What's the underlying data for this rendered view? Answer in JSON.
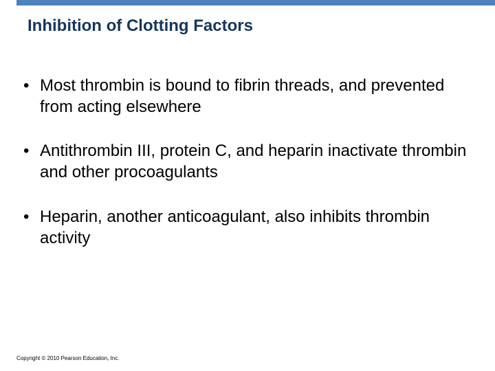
{
  "accent_color": "#4f81bd",
  "title_color": "#16365d",
  "text_color": "#000000",
  "background_color": "#ffffff",
  "title": {
    "text": "Inhibition of Clotting Factors",
    "fontsize": 24
  },
  "bullets": {
    "fontsize": 24,
    "marker": "•",
    "items": [
      "Most thrombin is bound to fibrin threads, and prevented from acting elsewhere",
      "Antithrombin III, protein C, and heparin inactivate thrombin and other procoagulants",
      "Heparin, another anticoagulant, also inhibits thrombin activity"
    ]
  },
  "copyright": {
    "text": "Copyright © 2010 Pearson Education, Inc.",
    "fontsize": 8
  }
}
